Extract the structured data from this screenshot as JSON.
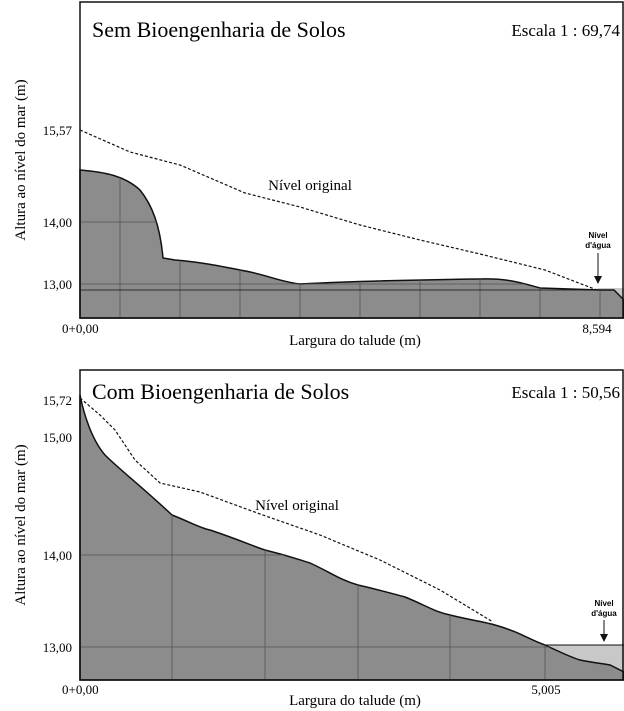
{
  "panels": [
    {
      "title": "Sem Bioengenharia de Solos",
      "scale": "Escala 1 : 69,74",
      "y_axis_label": "Altura ao nível do mar (m)",
      "x_axis_label": "Largura do talude (m)",
      "y_tick_labels": [
        "15,57",
        "14,00",
        "13,00"
      ],
      "x_tick_labels": [
        "0+0,00",
        "8,594"
      ],
      "original_level_label": "Nível original",
      "water_level_label": [
        "Nível",
        "d'água"
      ]
    },
    {
      "title": "Com Bioengenharia de Solos",
      "scale": "Escala 1 : 50,56",
      "y_axis_label": "Altura ao nível do mar (m)",
      "x_axis_label": "Largura do talude (m)",
      "y_tick_labels": [
        "15,72",
        "15,00",
        "14,00",
        "13,00"
      ],
      "x_tick_labels": [
        "0+0,00",
        "5,005"
      ],
      "original_level_label": "Nível original",
      "water_level_label": [
        "Nível",
        "d'água"
      ]
    }
  ]
}
